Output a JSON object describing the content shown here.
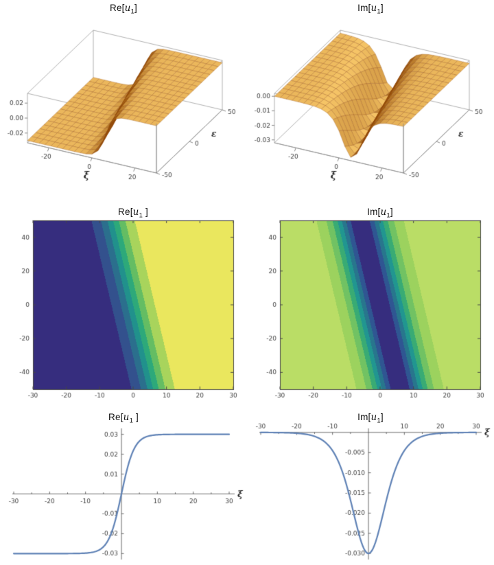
{
  "style": {
    "curve": "#5e81b5",
    "labels": "#3d3d3d",
    "frame": "#474747",
    "title": "#111111",
    "surface_orange_dark": "#8f4700",
    "surface_orange_light": "#ffd070"
  },
  "chart_data": [
    {
      "id": "surface-re",
      "type": "surface",
      "title_parts": {
        "pre": "Re[",
        "var": "u",
        "sub": "1",
        "post": "]"
      },
      "xlabel": "ξ",
      "ylabel": "ε",
      "x_range": [
        -30,
        30
      ],
      "y_range": [
        -50,
        50
      ],
      "z_range": [
        -0.033,
        0.033
      ],
      "x_ticks": [
        {
          "v": -20,
          "label": "-20"
        },
        {
          "v": 0,
          "label": "0"
        },
        {
          "v": 20,
          "label": "20"
        }
      ],
      "y_ticks": [
        {
          "v": -50,
          "label": "-50"
        },
        {
          "v": 0,
          "label": "0"
        },
        {
          "v": 50,
          "label": "50"
        }
      ],
      "z_ticks": [
        {
          "v": 0.02,
          "label": "0.02"
        },
        {
          "v": 0,
          "label": "0.00"
        },
        {
          "v": -0.02,
          "label": "-0.02"
        }
      ],
      "function": {
        "form": "tanh",
        "A": 0.03,
        "k": 0.28,
        "s": 0.12
      },
      "mesh": [
        22,
        16
      ],
      "colors": {
        "dark": "#8f4700",
        "light": "#ffd070",
        "edge": "rgba(140,66,10,0.55)"
      }
    },
    {
      "id": "surface-im",
      "type": "surface",
      "title_parts": {
        "pre": "Im[",
        "var": "u",
        "sub": "1",
        "post": "]"
      },
      "xlabel": "ξ",
      "ylabel": "ε",
      "x_range": [
        -30,
        30
      ],
      "y_range": [
        -50,
        50
      ],
      "z_range": [
        -0.032,
        0.002
      ],
      "x_ticks": [
        {
          "v": -20,
          "label": "-20"
        },
        {
          "v": 0,
          "label": "0"
        },
        {
          "v": 20,
          "label": "20"
        }
      ],
      "y_ticks": [
        {
          "v": -50,
          "label": "-50"
        },
        {
          "v": 0,
          "label": "0"
        },
        {
          "v": 50,
          "label": "50"
        }
      ],
      "z_ticks": [
        {
          "v": 0,
          "label": "0.00"
        },
        {
          "v": -0.01,
          "label": "-0.01"
        },
        {
          "v": -0.02,
          "label": "-0.02"
        },
        {
          "v": -0.03,
          "label": "-0.03"
        }
      ],
      "function": {
        "form": "sech2",
        "A": -0.03,
        "k": 0.16,
        "s": 0.12
      },
      "mesh": [
        22,
        16
      ],
      "colors": {
        "dark": "#8f4700",
        "light": "#ffd070",
        "edge": "rgba(140,66,10,0.55)"
      }
    },
    {
      "id": "contour-re",
      "type": "heatmap",
      "title_parts": {
        "pre": "Re[",
        "var": "u",
        "sub": "1",
        "post": " ]"
      },
      "x_range": [
        -30,
        30
      ],
      "y_range": [
        -50,
        50
      ],
      "z_range": [
        -0.03,
        0.03
      ],
      "x_ticks": [
        -30,
        -20,
        -10,
        0,
        10,
        20,
        30
      ],
      "y_ticks": [
        -40,
        -20,
        0,
        20,
        40
      ],
      "levels": 8,
      "function": {
        "form": "tanh",
        "A": 0.03,
        "k": 0.15,
        "s": 0.12
      },
      "colors": [
        "#362d7e",
        "#33518d",
        "#2b6f8d",
        "#21918c",
        "#2da97a",
        "#64bd63",
        "#a8d45c",
        "#eae75e"
      ]
    },
    {
      "id": "contour-im",
      "type": "heatmap",
      "title_parts": {
        "pre": "Im[",
        "var": "u",
        "sub": "1",
        "post": "]"
      },
      "x_range": [
        -30,
        30
      ],
      "y_range": [
        -50,
        50
      ],
      "z_range": [
        -0.03,
        0
      ],
      "x_ticks": [
        -30,
        -20,
        -10,
        0,
        10,
        20,
        30
      ],
      "y_ticks": [
        -40,
        -20,
        0,
        20,
        40
      ],
      "levels": 8,
      "function": {
        "form": "sech2",
        "A": -0.03,
        "k": 0.13,
        "s": 0.12
      },
      "colors": [
        "#362d7e",
        "#2f5692",
        "#28768d",
        "#219690",
        "#39ab74",
        "#71c263",
        "#9cd25e",
        "#badd66"
      ]
    },
    {
      "id": "line-re",
      "type": "line",
      "title_parts": {
        "pre": "Re[",
        "var": "u",
        "sub": "1",
        "post": " ]"
      },
      "xlabel": "ξ",
      "x_range": [
        -30,
        30
      ],
      "y_range": [
        -0.033,
        0.033
      ],
      "x_ticks": [
        {
          "v": -30,
          "label": "-30"
        },
        {
          "v": -20,
          "label": "-20"
        },
        {
          "v": -10,
          "label": "-10"
        },
        {
          "v": 10,
          "label": "10"
        },
        {
          "v": 20,
          "label": "20"
        },
        {
          "v": 30,
          "label": "30"
        }
      ],
      "y_ticks": [
        {
          "v": 0.03,
          "label": "0.03"
        },
        {
          "v": 0.02,
          "label": "0.02"
        },
        {
          "v": 0.01,
          "label": "0.01"
        },
        {
          "v": -0.01,
          "label": "-0.01"
        },
        {
          "v": -0.02,
          "label": "-0.02"
        },
        {
          "v": -0.03,
          "label": "-0.03"
        }
      ],
      "function": {
        "form": "tanh",
        "A": 0.03,
        "k": 0.28,
        "s": 0
      },
      "color": "#5e81b5",
      "x": [
        -30,
        -28,
        -26,
        -24,
        -22,
        -20,
        -18,
        -16,
        -14,
        -12,
        -10,
        -8,
        -6,
        -4,
        -2,
        0,
        2,
        4,
        6,
        8,
        10,
        12,
        14,
        16,
        18,
        20,
        22,
        24,
        26,
        28,
        30
      ],
      "values": [
        -0.03,
        -0.03,
        -0.03,
        -0.03,
        -0.03,
        -0.03,
        -0.03,
        -0.03,
        -0.03,
        -0.0299,
        -0.0298,
        -0.0293,
        -0.028,
        -0.0242,
        -0.0152,
        0,
        0.0152,
        0.0242,
        0.028,
        0.0293,
        0.0298,
        0.0299,
        0.03,
        0.03,
        0.03,
        0.03,
        0.03,
        0.03,
        0.03,
        0.03,
        0.03
      ]
    },
    {
      "id": "line-im",
      "type": "line",
      "title_parts": {
        "pre": "Im[",
        "var": "u",
        "sub": "1",
        "post": "]"
      },
      "xlabel": "ξ",
      "x_range": [
        -30,
        30
      ],
      "y_range": [
        -0.0315,
        0.001
      ],
      "x_ticks": [
        {
          "v": -30,
          "label": "-30"
        },
        {
          "v": -20,
          "label": "-20"
        },
        {
          "v": -10,
          "label": "-10"
        },
        {
          "v": 10,
          "label": "10"
        },
        {
          "v": 20,
          "label": "20"
        },
        {
          "v": 30,
          "label": "30"
        }
      ],
      "y_ticks": [
        {
          "v": -0.005,
          "label": "-0.005"
        },
        {
          "v": -0.01,
          "label": "-0.010"
        },
        {
          "v": -0.015,
          "label": "-0.015"
        },
        {
          "v": -0.02,
          "label": "-0.020"
        },
        {
          "v": -0.025,
          "label": "-0.025"
        },
        {
          "v": -0.03,
          "label": "-0.030"
        }
      ],
      "function": {
        "form": "sech2",
        "A": -0.03,
        "k": 0.16,
        "s": 0
      },
      "color": "#5e81b5",
      "x": [
        -30,
        -28,
        -26,
        -24,
        -22,
        -20,
        -18,
        -16,
        -14,
        -12,
        -10,
        -8,
        -6,
        -4,
        -2,
        0,
        2,
        4,
        6,
        8,
        10,
        12,
        14,
        16,
        18,
        20,
        22,
        24,
        26,
        28,
        30
      ],
      "values": [
        0,
        0,
        0,
        -0.0001,
        -0.0001,
        -0.0002,
        -0.0004,
        -0.0007,
        -0.0013,
        -0.0025,
        -0.0045,
        -0.008,
        -0.0134,
        -0.0204,
        -0.0271,
        -0.03,
        -0.0271,
        -0.0204,
        -0.0134,
        -0.008,
        -0.0045,
        -0.0025,
        -0.0013,
        -0.0007,
        -0.0004,
        -0.0002,
        -0.0001,
        -0.0001,
        0,
        0,
        0
      ]
    }
  ]
}
